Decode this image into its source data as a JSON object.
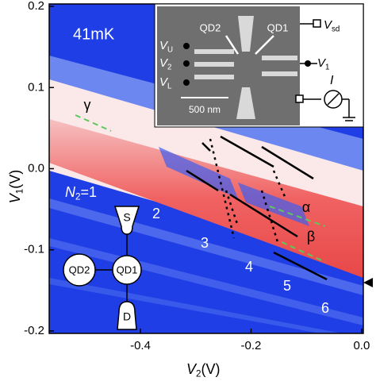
{
  "chart_data": {
    "type": "colormap",
    "xlabel": {
      "symbol": "V",
      "subscript": "2",
      "unit": "(V)"
    },
    "ylabel": {
      "symbol": "V",
      "subscript": "1",
      "unit": "(V)"
    },
    "xlim": [
      -0.565,
      0.003
    ],
    "xticks": [
      -0.4,
      -0.2,
      {
        "value": 0,
        "label": "0.0"
      }
    ],
    "ylim": [
      -0.203,
      0.203
    ],
    "yticks": [
      0.2,
      0.1,
      {
        "value": 0,
        "label": "0.0"
      },
      -0.1,
      -0.2
    ],
    "temperature": "41mK",
    "occupancy": {
      "symbol": "N",
      "subscript": "2",
      "rest": "=1"
    },
    "region_labels": [
      "2",
      "3",
      "4",
      "5",
      "6"
    ],
    "line_labels": [
      "γ",
      "α",
      "β"
    ],
    "schematic": {
      "source": "S",
      "dot1": "QD1",
      "dot2": "QD2",
      "drain": "D"
    },
    "inset": {
      "dot2": "QD2",
      "dot1": "QD1",
      "bias": {
        "symbol": "V",
        "subscript": "sd"
      },
      "gate_u": {
        "symbol": "V",
        "subscript": "U"
      },
      "gate_2": {
        "symbol": "V",
        "subscript": "2"
      },
      "gate_l": {
        "symbol": "V",
        "subscript": "L"
      },
      "gate_1": {
        "symbol": "V",
        "subscript": "1"
      },
      "current": "I",
      "scale_bar": "500 nm"
    }
  }
}
